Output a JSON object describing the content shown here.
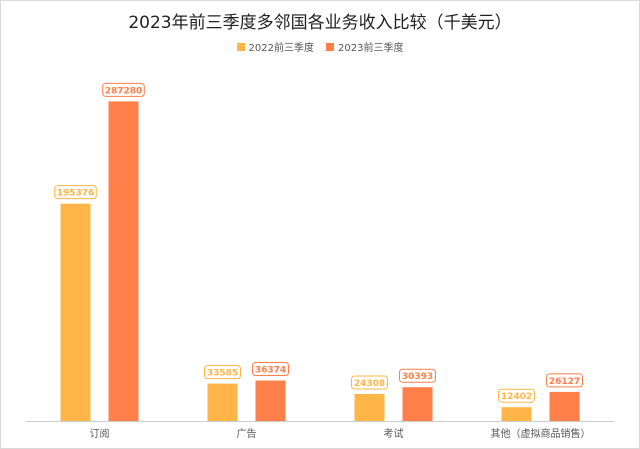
{
  "chart_data": {
    "type": "bar",
    "title": "2023年前三季度多邻国各业务收入比较（千美元）",
    "categories": [
      "订阅",
      "广告",
      "考试",
      "其他（虚拟商品销售）"
    ],
    "series": [
      {
        "name": "2022前三季度",
        "color": "#FFB547",
        "values": [
          195376,
          33585,
          24308,
          12402
        ]
      },
      {
        "name": "2023前三季度",
        "color": "#FF7F4A",
        "values": [
          287280,
          36374,
          30393,
          26127
        ]
      }
    ],
    "ylim": [
      0,
      320000
    ],
    "grid": false,
    "legend_position": "top-center",
    "data_labels": true
  }
}
